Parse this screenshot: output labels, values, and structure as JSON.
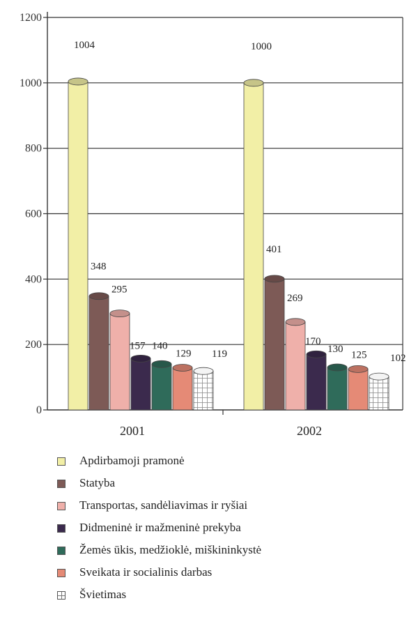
{
  "chart_data": {
    "type": "bar",
    "categories": [
      "2001",
      "2002"
    ],
    "ylim": [
      0,
      1200
    ],
    "yticks": [
      0,
      200,
      400,
      600,
      800,
      1000,
      1200
    ],
    "grid": true,
    "legend_position": "bottom",
    "series": [
      {
        "name": "Apdirbamoji pramonė",
        "values": [
          1004,
          1000
        ],
        "labels": [
          "1004",
          "1000"
        ],
        "color": "#f2efa6"
      },
      {
        "name": "Statyba",
        "values": [
          348,
          401
        ],
        "labels": [
          "348",
          "401"
        ],
        "color": "#7d5a56"
      },
      {
        "name": "Transportas, sandėliavimas ir ryšiai",
        "values": [
          295,
          269
        ],
        "labels": [
          "295",
          "269"
        ],
        "color": "#efb0aa"
      },
      {
        "name": "Didmeninė ir mažmeninė prekyba",
        "values": [
          157,
          170
        ],
        "labels": [
          "157",
          "170"
        ],
        "color": "#3b2a4d"
      },
      {
        "name": "Žemės ūkis, medžioklė, miškininkystė",
        "values": [
          140,
          130
        ],
        "labels": [
          "140",
          "130"
        ],
        "color": "#2f6b5a"
      },
      {
        "name": "Sveikata ir socialinis darbas",
        "values": [
          129,
          125
        ],
        "labels": [
          "129",
          "125"
        ],
        "color": "#e58a76"
      },
      {
        "name": "Švietimas",
        "values": [
          119,
          102
        ],
        "labels": [
          "119",
          "102"
        ],
        "color": "#ffffff",
        "pattern": true
      }
    ]
  }
}
